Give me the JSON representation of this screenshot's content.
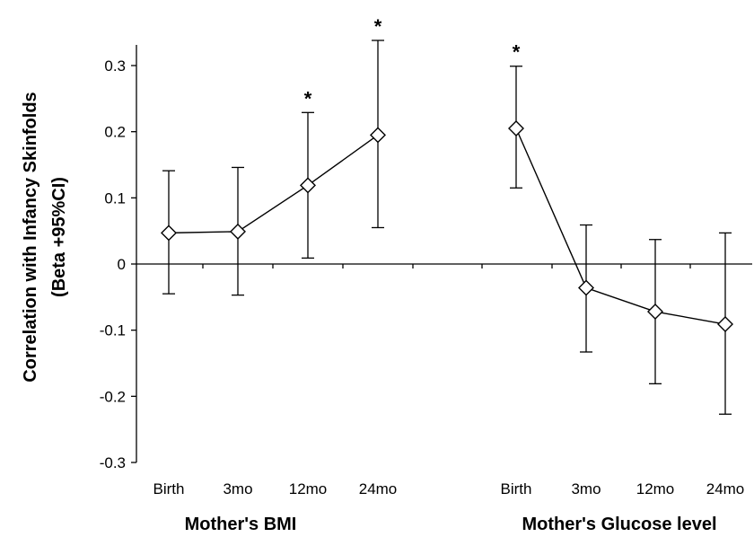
{
  "chart_data": {
    "type": "scatter",
    "ylabel_line1": "Correlation with Infancy Skinfolds",
    "ylabel_line2": "(Beta +95%CI)",
    "ylim": [
      -0.3,
      0.3
    ],
    "yticks": [
      0.3,
      0.2,
      0.1,
      0,
      -0.1,
      -0.2,
      -0.3
    ],
    "ytick_labels": [
      "0.3",
      "0.2",
      "0.1",
      "0",
      "-0.1",
      "-0.2",
      "-0.3"
    ],
    "significance_marker": "*",
    "groups": [
      {
        "name": "Mother's BMI",
        "categories": [
          "Birth",
          "3mo",
          "12mo",
          "24mo"
        ],
        "values": [
          0.047,
          0.049,
          0.119,
          0.195
        ],
        "ci_lower": [
          -0.045,
          -0.047,
          0.009,
          0.055
        ],
        "ci_upper": [
          0.141,
          0.146,
          0.229,
          0.338
        ],
        "significant": [
          false,
          false,
          true,
          true
        ]
      },
      {
        "name": "Mother's Glucose level",
        "categories": [
          "Birth",
          "3mo",
          "12mo",
          "24mo"
        ],
        "values": [
          0.205,
          -0.036,
          -0.072,
          -0.091
        ],
        "ci_lower": [
          0.115,
          -0.133,
          -0.181,
          -0.227
        ],
        "ci_upper": [
          0.299,
          0.059,
          0.037,
          0.047
        ],
        "significant": [
          true,
          false,
          false,
          false
        ]
      }
    ],
    "marker": "open-diamond",
    "grid": false
  }
}
